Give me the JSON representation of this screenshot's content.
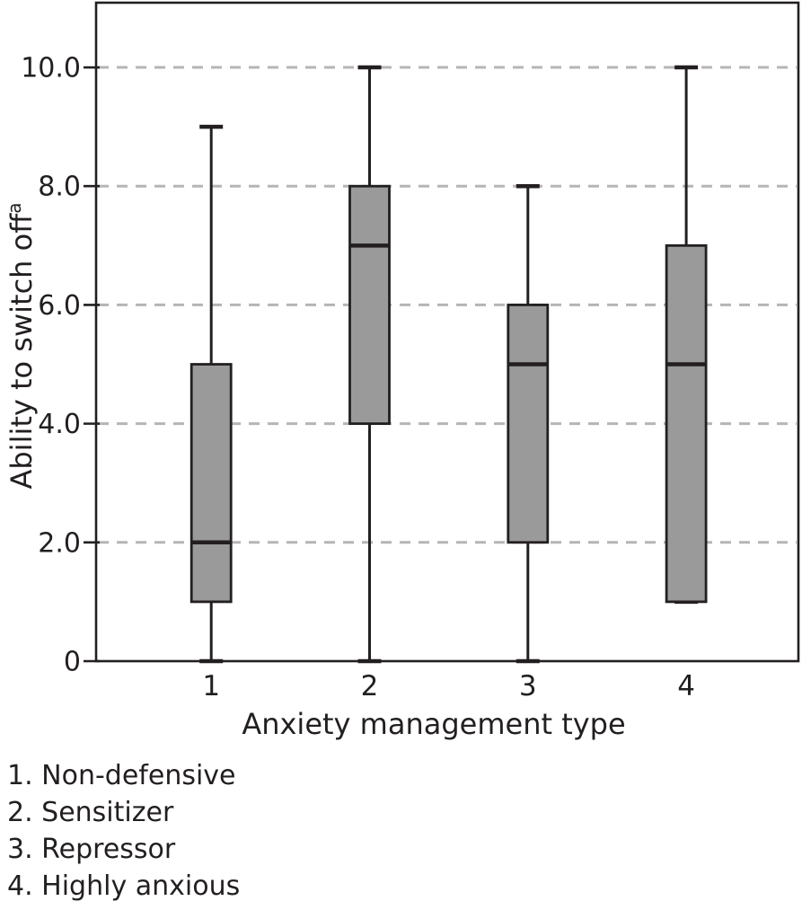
{
  "chart_data": {
    "type": "boxplot",
    "xlabel": "Anxiety management type",
    "ylabel": "Ability to switch off",
    "ylabel_superscript": "a",
    "x_categories": [
      "1",
      "2",
      "3",
      "4"
    ],
    "ylim": [
      0,
      11.09
    ],
    "y_ticks": [
      {
        "value": 0,
        "label": "0"
      },
      {
        "value": 2,
        "label": "2.0"
      },
      {
        "value": 4,
        "label": "4.0"
      },
      {
        "value": 6,
        "label": "6.0"
      },
      {
        "value": 8,
        "label": "8.0"
      },
      {
        "value": 10,
        "label": "10.0"
      }
    ],
    "grid": {
      "show": true,
      "values": [
        2,
        4,
        6,
        8,
        10
      ],
      "style": "dashed",
      "color": "#b5b5b5"
    },
    "series": [
      {
        "category": "1",
        "min": 0,
        "q1": 1,
        "median": 2,
        "q3": 5,
        "max": 9
      },
      {
        "category": "2",
        "min": 0,
        "q1": 4,
        "median": 7,
        "q3": 8,
        "max": 10
      },
      {
        "category": "3",
        "min": 0,
        "q1": 2,
        "median": 5,
        "q3": 6,
        "max": 8
      },
      {
        "category": "4",
        "min": 1,
        "q1": 1,
        "median": 5,
        "q3": 7,
        "max": 10
      }
    ],
    "box_fill": "#9a9a9a",
    "line_color": "#231f20",
    "legend_position": "below-left"
  },
  "footnotes": {
    "items": [
      "1. Non-defensive",
      "2. Sensitizer",
      "3. Repressor",
      "4. Highly anxious"
    ]
  }
}
